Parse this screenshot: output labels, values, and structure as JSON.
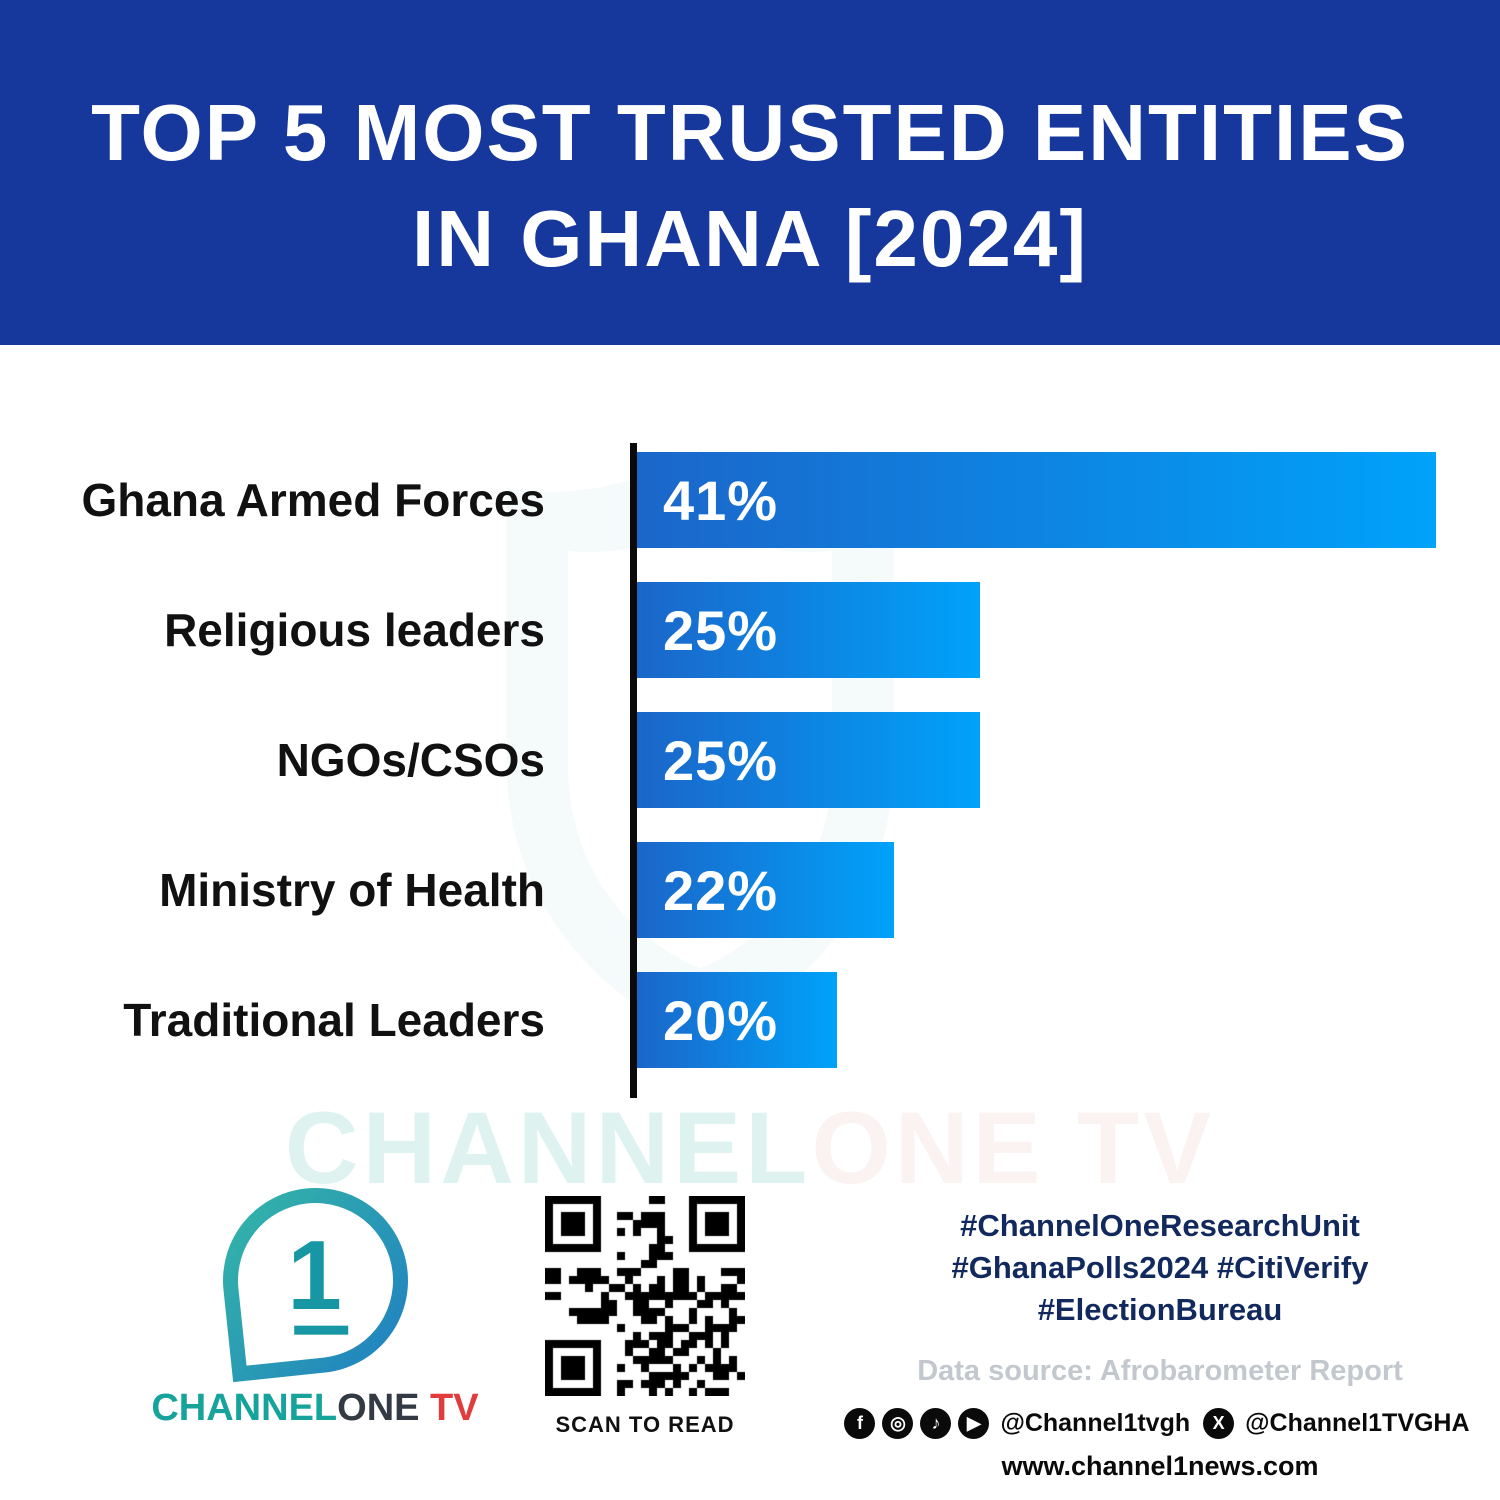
{
  "header": {
    "title_line1": "TOP 5 MOST TRUSTED ENTITIES",
    "title_line2": "IN GHANA [2024]"
  },
  "chart_data": {
    "type": "bar",
    "orientation": "horizontal",
    "title": "TOP 5 MOST TRUSTED ENTITIES IN GHANA [2024]",
    "categories": [
      "Ghana Armed Forces",
      "Religious leaders",
      "NGOs/CSOs",
      "Ministry of Health",
      "Traditional Leaders"
    ],
    "values": [
      41,
      25,
      25,
      22,
      20
    ],
    "value_labels": [
      "41%",
      "25%",
      "25%",
      "22%",
      "20%"
    ],
    "unit": "%",
    "xlim": [
      13,
      42
    ],
    "grid": false,
    "legend": false
  },
  "colors": {
    "banner_blue": "#16389d",
    "bar_gradient_start": "#1b66c9",
    "bar_gradient_end": "#00a2fa",
    "hashtag_navy": "#12295e",
    "source_gray": "#c3c8ce",
    "logo_teal": "#16a39c",
    "logo_red": "#e23b3b"
  },
  "watermark": {
    "part1": "CHANNEL",
    "part2": "ONE TV"
  },
  "footer": {
    "logo": {
      "numeral": "1",
      "part1": "CHANNEL",
      "part2": "ONE",
      "part3": " TV"
    },
    "qr_caption": "SCAN TO READ",
    "hashtags": [
      "#ChannelOneResearchUnit",
      "#GhanaPolls2024 #CitiVerify",
      "#ElectionBureau"
    ],
    "data_source": "Data source: Afrobarometer Report",
    "social": {
      "icons": [
        {
          "name": "facebook-icon",
          "glyph": "f"
        },
        {
          "name": "instagram-icon",
          "glyph": "◎"
        },
        {
          "name": "tiktok-icon",
          "glyph": "♪"
        },
        {
          "name": "youtube-icon",
          "glyph": "▶"
        }
      ],
      "handle1": "@Channel1tvgh",
      "x_glyph": "X",
      "handle2": "@Channel1TVGHA",
      "website": "www.channel1news.com"
    }
  }
}
